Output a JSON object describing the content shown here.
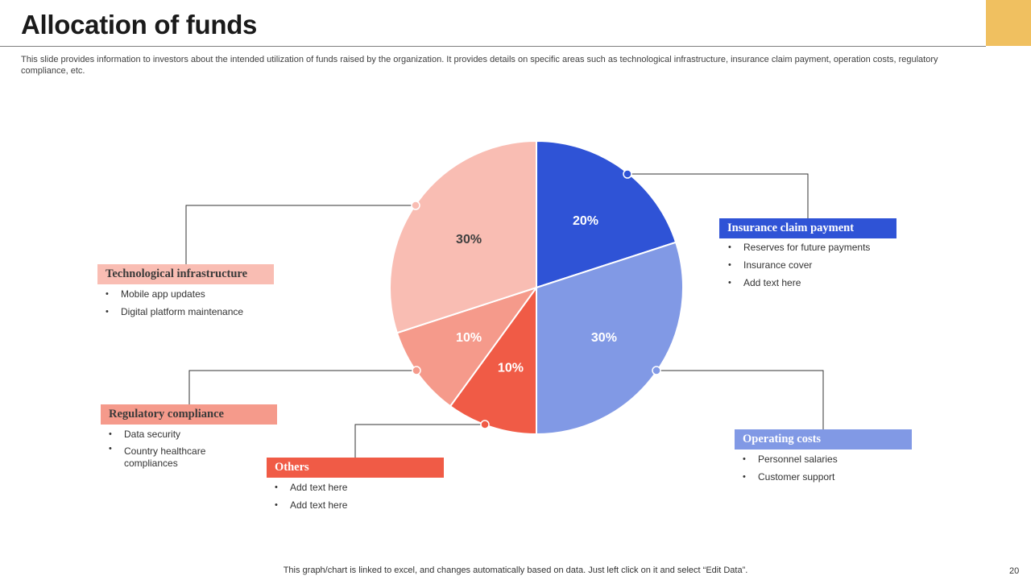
{
  "slide": {
    "title": "Allocation of funds",
    "subtitle": "This slide provides information to investors about the intended utilization of funds raised by the organization. It provides details on specific areas such as technological infrastructure, insurance claim payment, operation costs, regulatory compliance, etc.",
    "footer": "This graph/chart is linked to excel,  and changes automatically based on data. Just left click on it and select “Edit Data”.",
    "page_number": "20"
  },
  "colors": {
    "accent_block": "#f0c060",
    "insurance": "#2f53d6",
    "operating": "#8199e5",
    "others": "#f05b46",
    "regulatory": "#f59a8b",
    "technological": "#f9bdb3"
  },
  "chart_data": {
    "type": "pie",
    "title": "Allocation of funds",
    "start_angle_deg": 0,
    "direction": "clockwise",
    "slices": [
      {
        "key": "insurance",
        "name": "Insurance claim payment",
        "value": 20,
        "label": "20%",
        "color": "#2f53d6",
        "label_color": "#ffffff"
      },
      {
        "key": "operating",
        "name": "Operating costs",
        "value": 30,
        "label": "30%",
        "color": "#8199e5",
        "label_color": "#ffffff"
      },
      {
        "key": "others",
        "name": "Others",
        "value": 10,
        "label": "10%",
        "color": "#f05b46",
        "label_color": "#ffffff"
      },
      {
        "key": "regulatory",
        "name": "Regulatory compliance",
        "value": 10,
        "label": "10%",
        "color": "#f59a8b",
        "label_color": "#ffffff"
      },
      {
        "key": "technological",
        "name": "Technological infrastructure",
        "value": 30,
        "label": "30%",
        "color": "#f9bdb3",
        "label_color": "#404040"
      }
    ]
  },
  "categories": {
    "insurance": {
      "title": "Insurance claim payment",
      "items": [
        "Reserves for future payments",
        "Insurance cover",
        "Add text here"
      ]
    },
    "operating": {
      "title": "Operating costs",
      "items": [
        "Personnel salaries",
        "Customer support"
      ]
    },
    "others": {
      "title": "Others",
      "items": [
        "Add text here",
        "Add text here"
      ]
    },
    "regulatory": {
      "title": "Regulatory compliance",
      "items": [
        "Data security",
        "Country healthcare compliances"
      ]
    },
    "technological": {
      "title": "Technological infrastructure",
      "items": [
        "Mobile app updates",
        "Digital platform maintenance"
      ]
    }
  }
}
